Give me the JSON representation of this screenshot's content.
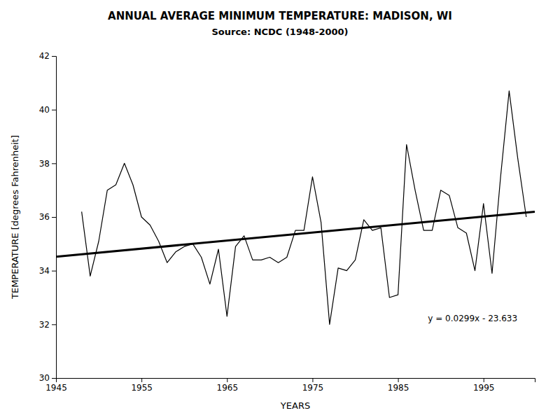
{
  "chart_data": {
    "type": "line",
    "title": "ANNUAL AVERAGE MINIMUM TEMPERATURE: MADISON, WI",
    "subtitle": "Source: NCDC (1948-2000)",
    "x_label": "YEARS",
    "y_label": "TEMPERATURE [degrees Fahrenheit]",
    "xlim": [
      1945,
      2001
    ],
    "ylim": [
      30,
      42
    ],
    "xticks": [
      1945,
      1955,
      1965,
      1975,
      1985,
      1995
    ],
    "yticks": [
      30,
      32,
      34,
      36,
      38,
      40,
      42
    ],
    "grid": false,
    "series": [
      {
        "color": "#000000",
        "x": [
          1948,
          1949,
          1950,
          1951,
          1952,
          1953,
          1954,
          1955,
          1956,
          1957,
          1958,
          1959,
          1960,
          1961,
          1962,
          1963,
          1964,
          1965,
          1966,
          1967,
          1968,
          1969,
          1970,
          1971,
          1972,
          1973,
          1974,
          1975,
          1976,
          1977,
          1978,
          1979,
          1980,
          1981,
          1982,
          1983,
          1984,
          1985,
          1986,
          1987,
          1988,
          1989,
          1990,
          1991,
          1992,
          1993,
          1994,
          1995,
          1996,
          1997,
          1998,
          1999,
          2000
        ],
        "values": [
          36.2,
          33.8,
          35.1,
          37.0,
          37.2,
          38.0,
          37.2,
          36.0,
          35.7,
          35.1,
          34.3,
          34.7,
          34.9,
          35.0,
          34.5,
          33.5,
          34.8,
          32.3,
          34.9,
          35.3,
          34.4,
          34.4,
          34.5,
          34.3,
          34.5,
          35.5,
          35.5,
          37.5,
          35.8,
          32.0,
          34.1,
          34.0,
          34.4,
          35.9,
          35.5,
          35.6,
          33.0,
          33.1,
          38.7,
          37.0,
          35.5,
          35.5,
          37.0,
          36.8,
          35.6,
          35.4,
          34.0,
          36.5,
          33.9,
          37.5,
          40.7,
          38.2,
          36.0
        ]
      },
      {
        "color": "#000000",
        "x": [
          1945,
          2001
        ],
        "values": [
          34.5225,
          36.1969
        ]
      }
    ],
    "annotations": [
      {
        "text": "y = 0.0299x - 23.633",
        "x": 1988.5,
        "y": 32.2
      }
    ]
  }
}
